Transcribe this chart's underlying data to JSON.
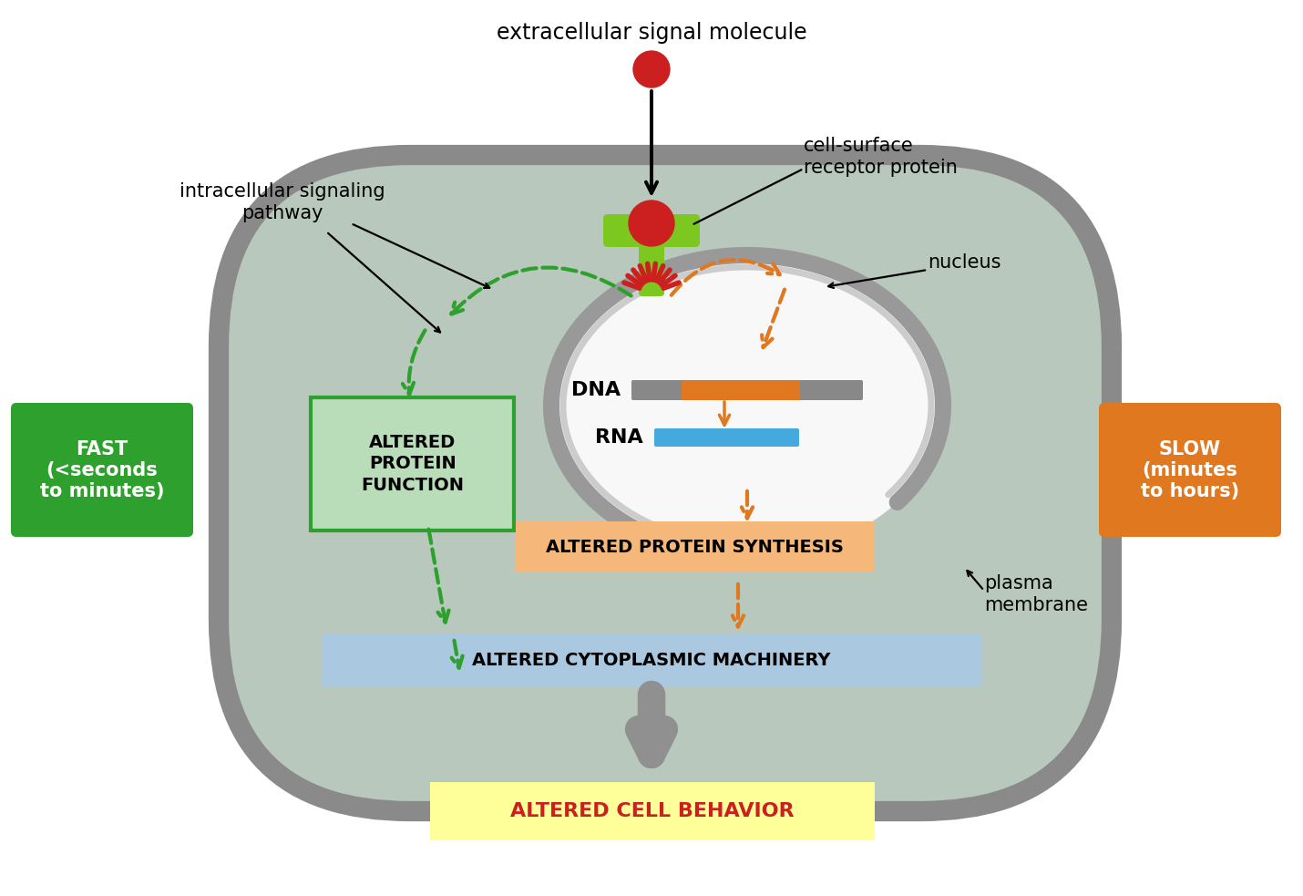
{
  "bg_color": "#ffffff",
  "cell_color": "#b8c8bc",
  "cell_border_color": "#8a8a8a",
  "nucleus_bg": "#f0f0f0",
  "nucleus_border": "#999999",
  "green_color": "#2da02d",
  "orange_color": "#e07820",
  "red_color": "#cc2020",
  "yellow_bg": "#ffff99",
  "light_green_box_fill": "#b8ddb8",
  "light_green_box_edge": "#2da02d",
  "light_orange_box": "#f5b87a",
  "light_blue_box": "#aac8e0",
  "fast_box_color": "#2da02d",
  "slow_box_color": "#e07820",
  "receptor_green": "#7cc820",
  "label_receptor": "cell-surface\nreceptor protein",
  "label_pathway": "intracellular signaling\npathway",
  "label_nucleus": "nucleus",
  "label_plasma": "plasma\nmembrane",
  "label_dna": "DNA",
  "label_rna": "RNA",
  "box_altered_protein_func": "ALTERED\nPROTEIN\nFUNCTION",
  "box_altered_protein_synth": "ALTERED PROTEIN SYNTHESIS",
  "box_altered_cytoplasm": "ALTERED CYTOPLASMIC MACHINERY",
  "box_altered_cell": "ALTERED CELL BEHAVIOR",
  "fast_label": "FAST\n(<seconds\nto minutes)",
  "slow_label": "SLOW\n(minutes\nto hours)",
  "ext_signal_label": "extracellular signal molecule",
  "dna_gray": "#888888",
  "rna_blue": "#44aadd"
}
